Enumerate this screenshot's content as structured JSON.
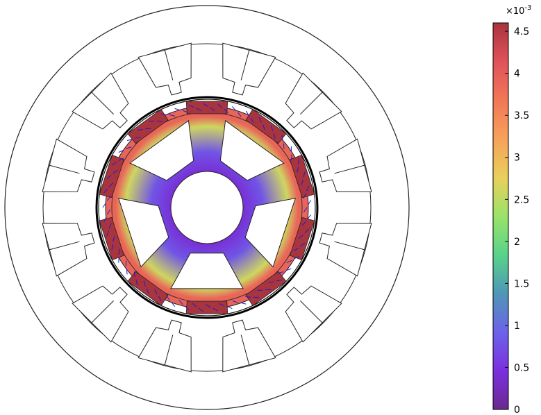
{
  "chart_data": {
    "type": "heatmap",
    "title": "",
    "colorbar": {
      "multiplier": "×10",
      "multiplier_exponent": "-3",
      "range": [
        0,
        4.6
      ],
      "ticks": [
        {
          "value": 0,
          "label": "0"
        },
        {
          "value": 0.5,
          "label": "0.5"
        },
        {
          "value": 1,
          "label": "1"
        },
        {
          "value": 1.5,
          "label": "1.5"
        },
        {
          "value": 2,
          "label": "2"
        },
        {
          "value": 2.5,
          "label": "2.5"
        },
        {
          "value": 3,
          "label": "3"
        },
        {
          "value": 3.5,
          "label": "3.5"
        },
        {
          "value": 4,
          "label": "4"
        },
        {
          "value": 4.5,
          "label": "4.5"
        }
      ],
      "colormap": [
        "#6a2a8e",
        "#7b2fe0",
        "#6c63e8",
        "#4f97b6",
        "#58d38a",
        "#9be36a",
        "#e9cf5c",
        "#f6a25a",
        "#f27757",
        "#e0525a",
        "#a8343d"
      ]
    },
    "geometry": {
      "stator_slots": 12,
      "rotor_magnets": 10,
      "rotor_spokes": 5
    },
    "field_values": {
      "shaft_ring": 0.4,
      "rotor_spokes": 0.8,
      "rotor_ring": 3.9,
      "magnets": 4.6,
      "arrow_color": "#1a1ae0"
    }
  }
}
